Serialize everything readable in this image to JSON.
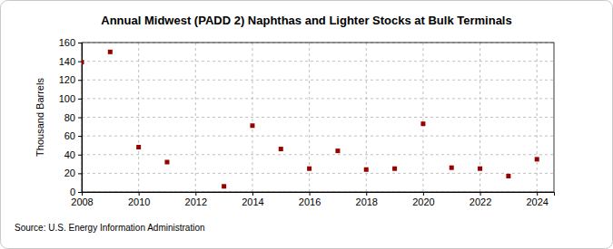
{
  "chart_data": {
    "type": "scatter",
    "title": "Annual Midwest (PADD 2) Naphthas and Lighter Stocks at Bulk Terminals",
    "y_label": "Thousand Barrels",
    "source": "Source: U.S. Energy Information Administration",
    "x": [
      2008,
      2009,
      2010,
      2011,
      2013,
      2014,
      2015,
      2016,
      2017,
      2018,
      2019,
      2020,
      2021,
      2022,
      2023,
      2024
    ],
    "values": [
      139,
      150,
      48,
      32,
      6,
      71,
      46,
      25,
      44,
      24,
      25,
      73,
      26,
      25,
      17,
      35
    ],
    "color": "#990000",
    "marker": "square",
    "xlim": [
      2008,
      2024.6
    ],
    "xticks": [
      2008,
      2010,
      2012,
      2014,
      2016,
      2018,
      2020,
      2022,
      2024
    ],
    "ylim": [
      0,
      160
    ],
    "yticks": [
      0,
      20,
      40,
      60,
      80,
      100,
      120,
      140,
      160
    ],
    "grid": true
  }
}
